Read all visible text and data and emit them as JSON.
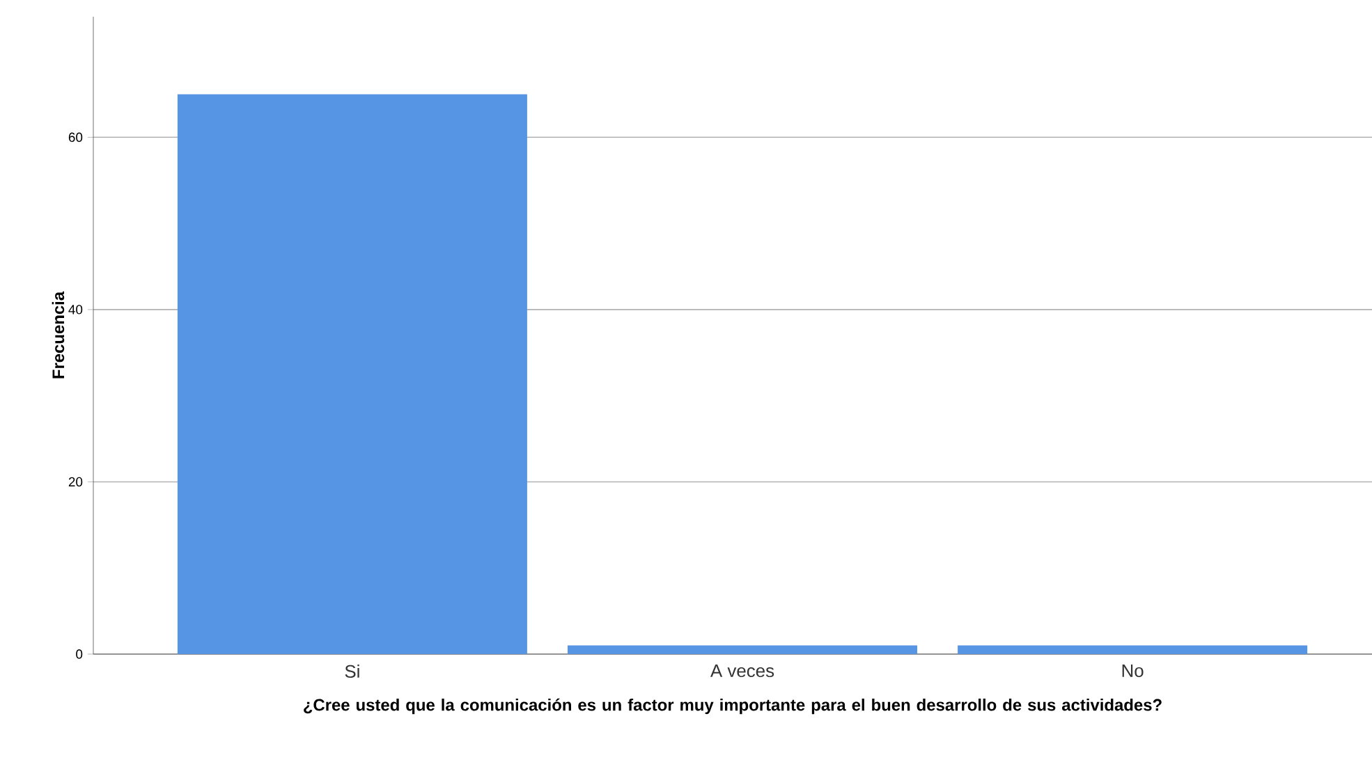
{
  "chart_data": {
    "type": "bar",
    "xlabel": "¿Cree usted que la comunicación es un factor muy importante para el buen desarrollo de sus actividades?",
    "ylabel": "Frecuencia",
    "categories": [
      "Si",
      "A veces",
      "No"
    ],
    "values": [
      65,
      1,
      1
    ],
    "color": "#5694e4",
    "ylim": [
      0,
      74
    ],
    "yticks": [
      0,
      20,
      40,
      60
    ],
    "grid": "y"
  }
}
